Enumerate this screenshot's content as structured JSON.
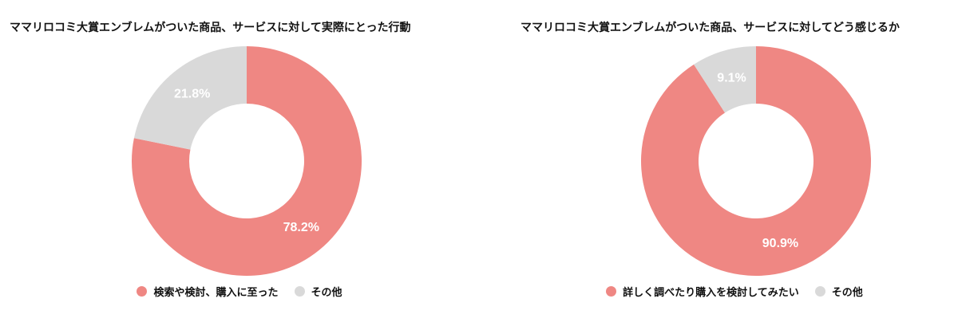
{
  "colors": {
    "primary": "#ef8783",
    "secondary": "#d9d9d9"
  },
  "chart_data": [
    {
      "type": "pie",
      "donut": true,
      "title": "ママリロコミ大賞エンブレムがついた商品、サービスに対して実際にとった行動",
      "slices": [
        {
          "label": "検索や検討、購入に至った",
          "value": 78.2,
          "display": "78.2%",
          "color": "#ef8783"
        },
        {
          "label": "その他",
          "value": 21.8,
          "display": "21.8%",
          "color": "#d9d9d9"
        }
      ],
      "legend_position": "bottom"
    },
    {
      "type": "pie",
      "donut": true,
      "title": "ママリロコミ大賞エンブレムがついた商品、サービスに対してどう感じるか",
      "slices": [
        {
          "label": "詳しく調べたり購入を検討してみたい",
          "value": 90.9,
          "display": "90.9%",
          "color": "#ef8783"
        },
        {
          "label": "その他",
          "value": 9.1,
          "display": "9.1%",
          "color": "#d9d9d9"
        }
      ],
      "legend_position": "bottom"
    }
  ]
}
